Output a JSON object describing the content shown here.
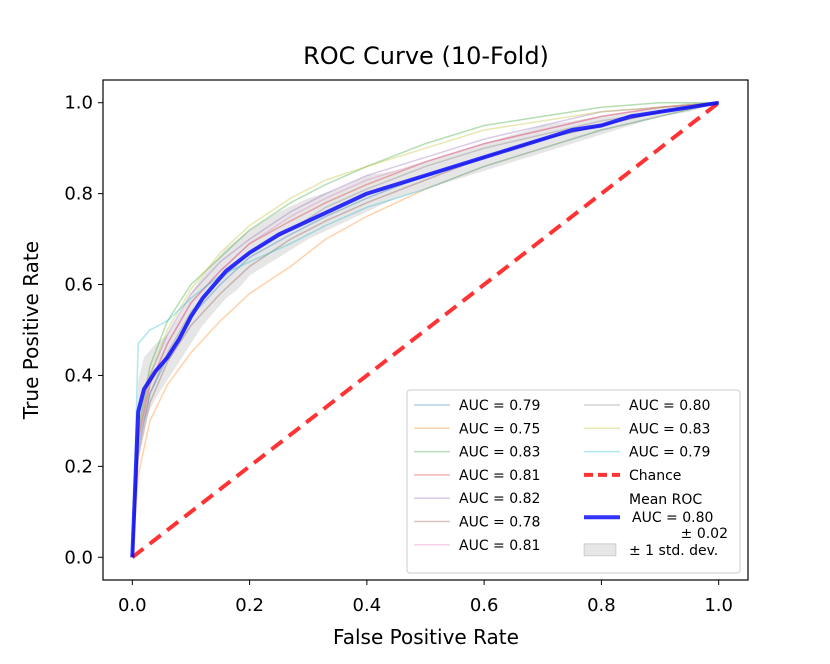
{
  "chart_data": {
    "type": "line",
    "title": "ROC Curve (10-Fold)",
    "xlabel": "False Positive Rate",
    "ylabel": "True Positive Rate",
    "xlim": [
      -0.05,
      1.05
    ],
    "ylim": [
      -0.05,
      1.05
    ],
    "xticks": [
      "0.0",
      "0.2",
      "0.4",
      "0.6",
      "0.8",
      "1.0"
    ],
    "yticks": [
      "0.0",
      "0.2",
      "0.4",
      "0.6",
      "0.8",
      "1.0"
    ],
    "grid": false,
    "legend_position": "lower-right",
    "series": [
      {
        "name": "AUC = 0.79",
        "color": "#1f77b4",
        "x": [
          0,
          0.01,
          0.03,
          0.06,
          0.1,
          0.15,
          0.2,
          0.27,
          0.33,
          0.4,
          0.5,
          0.6,
          0.7,
          0.8,
          0.9,
          1
        ],
        "y": [
          0,
          0.24,
          0.36,
          0.44,
          0.53,
          0.6,
          0.66,
          0.71,
          0.75,
          0.79,
          0.84,
          0.88,
          0.92,
          0.95,
          0.98,
          1
        ]
      },
      {
        "name": "AUC = 0.75",
        "color": "#ff7f0e",
        "x": [
          0,
          0.01,
          0.03,
          0.06,
          0.1,
          0.15,
          0.2,
          0.27,
          0.33,
          0.4,
          0.5,
          0.6,
          0.7,
          0.8,
          0.9,
          1
        ],
        "y": [
          0,
          0.18,
          0.3,
          0.38,
          0.45,
          0.52,
          0.58,
          0.64,
          0.7,
          0.75,
          0.81,
          0.86,
          0.9,
          0.94,
          0.97,
          1
        ]
      },
      {
        "name": "AUC = 0.83",
        "color": "#2ca02c",
        "x": [
          0,
          0.01,
          0.03,
          0.06,
          0.1,
          0.15,
          0.2,
          0.27,
          0.33,
          0.4,
          0.5,
          0.6,
          0.7,
          0.8,
          0.9,
          1
        ],
        "y": [
          0,
          0.28,
          0.42,
          0.52,
          0.6,
          0.66,
          0.72,
          0.78,
          0.82,
          0.86,
          0.91,
          0.95,
          0.97,
          0.99,
          1,
          1
        ]
      },
      {
        "name": "AUC = 0.81",
        "color": "#d62728",
        "x": [
          0,
          0.01,
          0.03,
          0.06,
          0.1,
          0.15,
          0.2,
          0.27,
          0.33,
          0.4,
          0.5,
          0.6,
          0.7,
          0.8,
          0.9,
          1
        ],
        "y": [
          0,
          0.26,
          0.38,
          0.47,
          0.56,
          0.63,
          0.69,
          0.74,
          0.78,
          0.82,
          0.87,
          0.91,
          0.94,
          0.97,
          0.99,
          1
        ]
      },
      {
        "name": "AUC = 0.82",
        "color": "#9467bd",
        "x": [
          0,
          0.01,
          0.03,
          0.06,
          0.1,
          0.15,
          0.2,
          0.27,
          0.33,
          0.4,
          0.5,
          0.6,
          0.7,
          0.8,
          0.9,
          1
        ],
        "y": [
          0,
          0.27,
          0.4,
          0.49,
          0.58,
          0.65,
          0.7,
          0.76,
          0.8,
          0.84,
          0.88,
          0.92,
          0.95,
          0.98,
          0.99,
          1
        ]
      },
      {
        "name": "AUC = 0.78",
        "color": "#8c564b",
        "x": [
          0,
          0.01,
          0.03,
          0.06,
          0.1,
          0.15,
          0.2,
          0.27,
          0.33,
          0.4,
          0.5,
          0.6,
          0.7,
          0.8,
          0.9,
          1
        ],
        "y": [
          0,
          0.22,
          0.34,
          0.43,
          0.51,
          0.58,
          0.64,
          0.7,
          0.74,
          0.78,
          0.83,
          0.88,
          0.92,
          0.95,
          0.98,
          1
        ]
      },
      {
        "name": "AUC = 0.81",
        "color": "#e377c2",
        "x": [
          0,
          0.01,
          0.03,
          0.06,
          0.1,
          0.15,
          0.2,
          0.27,
          0.33,
          0.4,
          0.5,
          0.6,
          0.7,
          0.8,
          0.9,
          1
        ],
        "y": [
          0,
          0.25,
          0.38,
          0.47,
          0.56,
          0.63,
          0.69,
          0.75,
          0.79,
          0.83,
          0.87,
          0.91,
          0.94,
          0.97,
          0.99,
          1
        ]
      },
      {
        "name": "AUC = 0.80",
        "color": "#7f7f7f",
        "x": [
          0,
          0.01,
          0.03,
          0.06,
          0.1,
          0.15,
          0.2,
          0.27,
          0.33,
          0.4,
          0.5,
          0.6,
          0.7,
          0.8,
          0.9,
          1
        ],
        "y": [
          0,
          0.23,
          0.36,
          0.45,
          0.54,
          0.61,
          0.67,
          0.72,
          0.77,
          0.81,
          0.86,
          0.9,
          0.93,
          0.96,
          0.98,
          1
        ]
      },
      {
        "name": "AUC = 0.83",
        "color": "#bcbd22",
        "x": [
          0,
          0.01,
          0.03,
          0.06,
          0.1,
          0.15,
          0.2,
          0.27,
          0.33,
          0.4,
          0.5,
          0.6,
          0.7,
          0.8,
          0.9,
          1
        ],
        "y": [
          0,
          0.26,
          0.4,
          0.5,
          0.59,
          0.67,
          0.73,
          0.79,
          0.83,
          0.86,
          0.9,
          0.94,
          0.96,
          0.98,
          0.99,
          1
        ]
      },
      {
        "name": "AUC = 0.79",
        "color": "#17becf",
        "x": [
          0,
          0.01,
          0.03,
          0.06,
          0.1,
          0.15,
          0.2,
          0.27,
          0.33,
          0.4,
          0.5,
          0.6,
          0.7,
          0.8,
          0.9,
          1
        ],
        "y": [
          0,
          0.47,
          0.5,
          0.52,
          0.57,
          0.62,
          0.65,
          0.69,
          0.73,
          0.77,
          0.81,
          0.86,
          0.9,
          0.94,
          0.97,
          1
        ]
      }
    ],
    "chance": {
      "name": "Chance",
      "color": "#ff0000",
      "x": [
        0,
        1
      ],
      "y": [
        0,
        1
      ]
    },
    "mean": {
      "name": "Mean ROC",
      "label_line1": "AUC = 0.80",
      "label_line2": "± 0.02",
      "color": "#0000ff",
      "x": [
        0,
        0.01,
        0.02,
        0.04,
        0.06,
        0.08,
        0.1,
        0.12,
        0.14,
        0.16,
        0.18,
        0.2,
        0.25,
        0.3,
        0.35,
        0.4,
        0.45,
        0.5,
        0.55,
        0.6,
        0.65,
        0.7,
        0.75,
        0.8,
        0.85,
        0.9,
        0.95,
        1
      ],
      "y": [
        0,
        0.32,
        0.37,
        0.41,
        0.44,
        0.48,
        0.53,
        0.57,
        0.6,
        0.63,
        0.65,
        0.67,
        0.71,
        0.74,
        0.77,
        0.8,
        0.82,
        0.84,
        0.86,
        0.88,
        0.9,
        0.92,
        0.94,
        0.95,
        0.97,
        0.98,
        0.99,
        1
      ]
    },
    "std_band": {
      "name": "± 1 std. dev.",
      "color": "#808080",
      "x": [
        0,
        0.01,
        0.02,
        0.04,
        0.06,
        0.08,
        0.1,
        0.12,
        0.14,
        0.16,
        0.18,
        0.2,
        0.25,
        0.3,
        0.35,
        0.4,
        0.45,
        0.5,
        0.55,
        0.6,
        0.65,
        0.7,
        0.75,
        0.8,
        0.85,
        0.9,
        0.95,
        1
      ],
      "lower": [
        0,
        0.25,
        0.3,
        0.35,
        0.39,
        0.43,
        0.47,
        0.51,
        0.54,
        0.57,
        0.59,
        0.62,
        0.66,
        0.7,
        0.73,
        0.76,
        0.79,
        0.81,
        0.83,
        0.85,
        0.87,
        0.89,
        0.91,
        0.93,
        0.95,
        0.97,
        0.98,
        1
      ],
      "upper": [
        0,
        0.39,
        0.44,
        0.47,
        0.49,
        0.53,
        0.58,
        0.62,
        0.65,
        0.68,
        0.7,
        0.72,
        0.76,
        0.79,
        0.81,
        0.84,
        0.85,
        0.87,
        0.89,
        0.91,
        0.93,
        0.95,
        0.96,
        0.97,
        0.98,
        0.99,
        1,
        1
      ]
    }
  }
}
